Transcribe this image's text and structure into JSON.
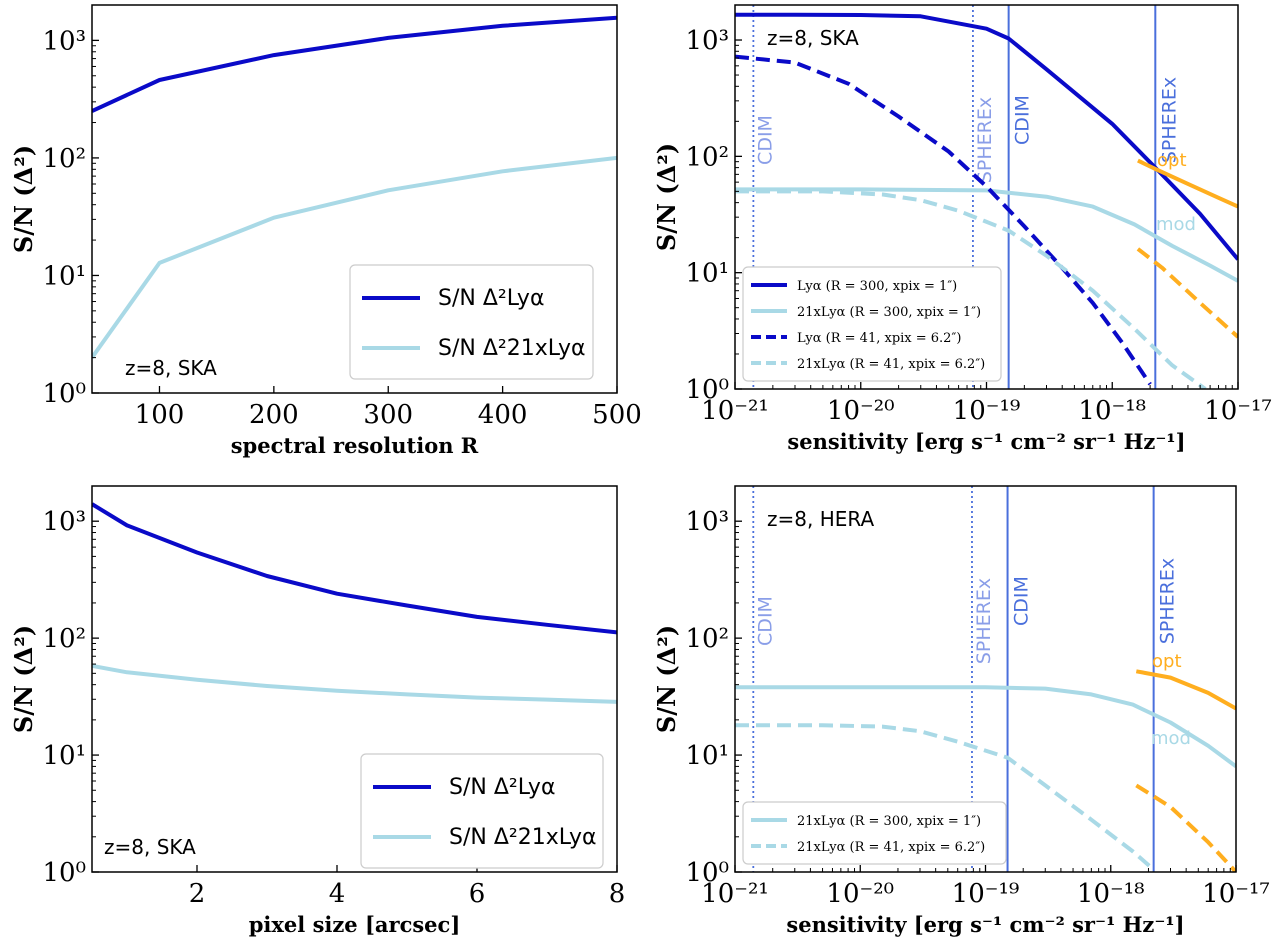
{
  "colors": {
    "dark": "#0a0ac8",
    "light": "#a9d9e6",
    "orange": "#ffae1f",
    "instrument": "#4a6fdc",
    "instrument_faint": "#8a9ee8"
  },
  "chart_data": [
    {
      "id": "p1",
      "type": "line",
      "scale": "log-y",
      "xlabel": "spectral resolution R",
      "ylabel": "S/N (Δ²)",
      "xlim": [
        41,
        500
      ],
      "ylim": [
        1,
        2000
      ],
      "xticks": [
        "100",
        "200",
        "300",
        "400",
        "500"
      ],
      "yticks": [
        "10⁰",
        "10¹",
        "10²",
        "10³"
      ],
      "annotation": "z=8, SKA",
      "legend_position": "lower right",
      "series": [
        {
          "name": "S/N  Δ²Lyα",
          "color": "dark",
          "style": "solid",
          "x": [
            41,
            100,
            200,
            300,
            400,
            500
          ],
          "y": [
            250,
            460,
            750,
            1050,
            1330,
            1560
          ]
        },
        {
          "name": "S/N  Δ²21xLyα",
          "color": "light",
          "style": "solid",
          "x": [
            41,
            100,
            200,
            300,
            400,
            500
          ],
          "y": [
            2,
            12.8,
            31,
            53,
            77,
            100
          ]
        }
      ]
    },
    {
      "id": "p2",
      "type": "line",
      "scale": "log-log",
      "xlabel": "sensitivity [erg s⁻¹ cm⁻² sr⁻¹ Hz⁻¹]",
      "ylabel": "S/N (Δ²)",
      "xlim": [
        1e-21,
        1e-17
      ],
      "ylim": [
        1,
        2000
      ],
      "xticks": [
        "10⁻²¹",
        "10⁻²⁰",
        "10⁻¹⁹",
        "10⁻¹⁸",
        "10⁻¹⁷"
      ],
      "yticks": [
        "10⁰",
        "10¹",
        "10²",
        "10³"
      ],
      "annotation": "z=8, SKA",
      "legend_position": "lower left",
      "instruments": [
        {
          "name": "CDIM",
          "x": 1.4e-21,
          "style": "dotted"
        },
        {
          "name": "SPHEREx",
          "x": 7.8e-20,
          "style": "dotted"
        },
        {
          "name": "CDIM",
          "x": 1.5e-19,
          "style": "solid"
        },
        {
          "name": "SPHEREx",
          "x": 2.2e-18,
          "style": "solid"
        }
      ],
      "labels": [
        {
          "text": "opt",
          "color": "orange"
        },
        {
          "text": "mod",
          "color": "light"
        }
      ],
      "series": [
        {
          "name": "Lyα (R = 300, x_pix = 1″)",
          "color": "dark",
          "style": "solid",
          "x": [
            1e-21,
            3e-21,
            1e-20,
            3e-20,
            1e-19,
            1.5e-19,
            3e-19,
            1e-18,
            2.2e-18,
            5e-18,
            1e-17
          ],
          "y": [
            1650,
            1650,
            1640,
            1600,
            1250,
            1030,
            560,
            190,
            80,
            32,
            13
          ]
        },
        {
          "name": "21xLyα (R = 300, x_pix = 1″)",
          "color": "light",
          "style": "solid",
          "x": [
            1e-21,
            1e-20,
            1e-19,
            3e-19,
            7e-19,
            1.5e-18,
            3e-18,
            6e-18,
            1e-17
          ],
          "y": [
            52,
            52,
            51,
            45,
            37,
            26,
            17,
            11.5,
            8.5
          ]
        },
        {
          "name": "Lyα (R = 41, x_pix = 6.2″)",
          "color": "dark",
          "style": "dashed",
          "x": [
            1e-21,
            3e-21,
            8e-21,
            2e-20,
            5e-20,
            1e-19,
            2e-19,
            4e-19,
            7e-19,
            1.2e-18,
            2e-18
          ],
          "y": [
            720,
            640,
            420,
            220,
            110,
            55,
            25,
            11,
            5.5,
            2.5,
            1.1
          ]
        },
        {
          "name": "21xLyα (R = 41, x_pix = 6.2″)",
          "color": "light",
          "style": "dashed",
          "x": [
            1e-21,
            5e-21,
            1.5e-20,
            3e-20,
            6e-20,
            1.5e-19,
            3e-19,
            7e-19,
            1.5e-18,
            3e-18,
            5.5e-18
          ],
          "y": [
            50,
            50,
            47,
            42,
            34,
            23,
            14,
            7,
            3.3,
            1.6,
            1
          ]
        },
        {
          "name": "opt",
          "color": "orange",
          "style": "solid",
          "x": [
            1.6e-18,
            2.2e-18,
            4e-18,
            7e-18,
            1e-17
          ],
          "y": [
            92,
            78,
            58,
            44,
            37
          ]
        },
        {
          "name": "opt dashed",
          "color": "orange",
          "style": "dashed",
          "x": [
            1.6e-18,
            2.5e-18,
            5e-18,
            1e-17
          ],
          "y": [
            16,
            11,
            5.5,
            2.8
          ]
        }
      ]
    },
    {
      "id": "p3",
      "type": "line",
      "scale": "log-y",
      "xlabel": "pixel size [arcsec]",
      "ylabel": "S/N (Δ²)",
      "xlim": [
        0.5,
        8
      ],
      "ylim": [
        1,
        2000
      ],
      "xticks": [
        "2",
        "4",
        "6",
        "8"
      ],
      "yticks": [
        "10⁰",
        "10¹",
        "10²",
        "10³"
      ],
      "annotation": "z=8, SKA",
      "legend_position": "lower right",
      "series": [
        {
          "name": "S/N  Δ²Lyα",
          "color": "dark",
          "style": "solid",
          "x": [
            0.5,
            1,
            2,
            3,
            4,
            5,
            6,
            7,
            8
          ],
          "y": [
            1400,
            920,
            540,
            340,
            240,
            190,
            152,
            130,
            112
          ]
        },
        {
          "name": "S/N  Δ²21xLyα",
          "color": "light",
          "style": "solid",
          "x": [
            0.5,
            1,
            2,
            3,
            4,
            5,
            6,
            7,
            8
          ],
          "y": [
            58,
            51,
            44,
            39,
            35.5,
            33,
            31,
            29.8,
            28.5
          ]
        }
      ]
    },
    {
      "id": "p4",
      "type": "line",
      "scale": "log-log",
      "xlabel": "sensitivity [erg s⁻¹ cm⁻² sr⁻¹ Hz⁻¹]",
      "ylabel": "S/N (Δ²)",
      "xlim": [
        1e-21,
        1e-17
      ],
      "ylim": [
        1,
        2000
      ],
      "xticks": [
        "10⁻²¹",
        "10⁻²⁰",
        "10⁻¹⁹",
        "10⁻¹⁸",
        "10⁻¹⁷"
      ],
      "yticks": [
        "10⁰",
        "10¹",
        "10²",
        "10³"
      ],
      "annotation": "z=8, HERA",
      "legend_position": "lower left",
      "instruments": [
        {
          "name": "CDIM",
          "x": 1.4e-21,
          "style": "dotted"
        },
        {
          "name": "SPHEREx",
          "x": 7.8e-20,
          "style": "dotted"
        },
        {
          "name": "CDIM",
          "x": 1.5e-19,
          "style": "solid"
        },
        {
          "name": "SPHEREx",
          "x": 2.2e-18,
          "style": "solid"
        }
      ],
      "labels": [
        {
          "text": "opt",
          "color": "orange"
        },
        {
          "text": "mod",
          "color": "light"
        }
      ],
      "series": [
        {
          "name": "21xLyα (R = 300, x_pix = 1″)",
          "color": "light",
          "style": "solid",
          "x": [
            1e-21,
            1e-20,
            1e-19,
            3e-19,
            7e-19,
            1.5e-18,
            3e-18,
            6e-18,
            1e-17
          ],
          "y": [
            38,
            38,
            38,
            37,
            33,
            27,
            19,
            12,
            8
          ]
        },
        {
          "name": "21xLyα (R = 41, x_pix = 6.2″)",
          "color": "light",
          "style": "dashed",
          "x": [
            1e-21,
            5e-21,
            1.5e-20,
            3e-20,
            6e-20,
            1.5e-19,
            3e-19,
            7e-19,
            1.5e-18,
            2.2e-18
          ],
          "y": [
            18,
            18,
            17.5,
            16,
            13,
            9.5,
            5.5,
            2.8,
            1.5,
            1.05
          ]
        },
        {
          "name": "opt",
          "color": "orange",
          "style": "solid",
          "x": [
            1.6e-18,
            3e-18,
            6e-18,
            1e-17
          ],
          "y": [
            52,
            46,
            34,
            25
          ]
        },
        {
          "name": "opt dashed",
          "color": "orange",
          "style": "dashed",
          "x": [
            1.6e-18,
            3e-18,
            6e-18,
            1e-17
          ],
          "y": [
            5.5,
            3.6,
            1.8,
            1
          ]
        }
      ]
    }
  ]
}
